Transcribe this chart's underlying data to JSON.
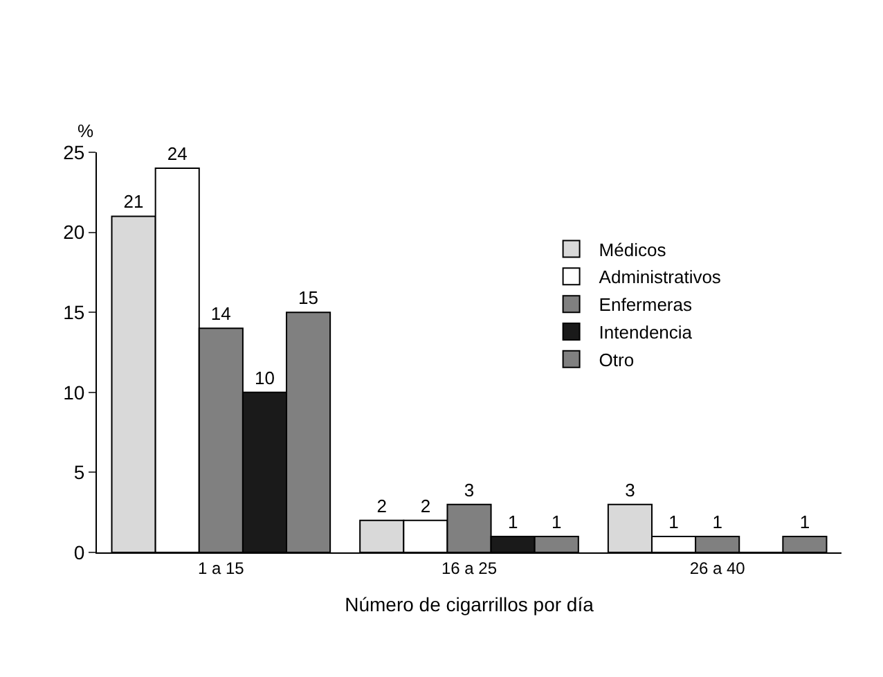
{
  "chart_data": {
    "type": "bar",
    "ylabel": "%",
    "xlabel": "Número de cigarrillos por día",
    "categories": [
      "1 a 15",
      "16 a 25",
      "26 a 40"
    ],
    "series": [
      {
        "name": "Médicos",
        "color": "#d9d9d9",
        "values": [
          21,
          2,
          3
        ],
        "value_labels": [
          "21",
          "2",
          "3"
        ]
      },
      {
        "name": "Administrativos",
        "color": "#ffffff",
        "values": [
          24,
          2,
          1
        ],
        "value_labels": [
          "24",
          "2",
          "1"
        ]
      },
      {
        "name": "Enfermeras",
        "color": "#808080",
        "values": [
          14,
          3,
          1
        ],
        "value_labels": [
          "14",
          "3",
          "1"
        ]
      },
      {
        "name": "Intendencia",
        "color": "#1a1a1a",
        "values": [
          10,
          1,
          0
        ],
        "value_labels": [
          "10",
          "1",
          null
        ]
      },
      {
        "name": "Otro",
        "color": "#808080",
        "values": [
          15,
          1,
          1
        ],
        "value_labels": [
          "15",
          "1",
          "1"
        ]
      }
    ],
    "ylim": [
      0,
      25
    ],
    "yticks": [
      0,
      5,
      10,
      15,
      20,
      25
    ],
    "legend": "right"
  }
}
